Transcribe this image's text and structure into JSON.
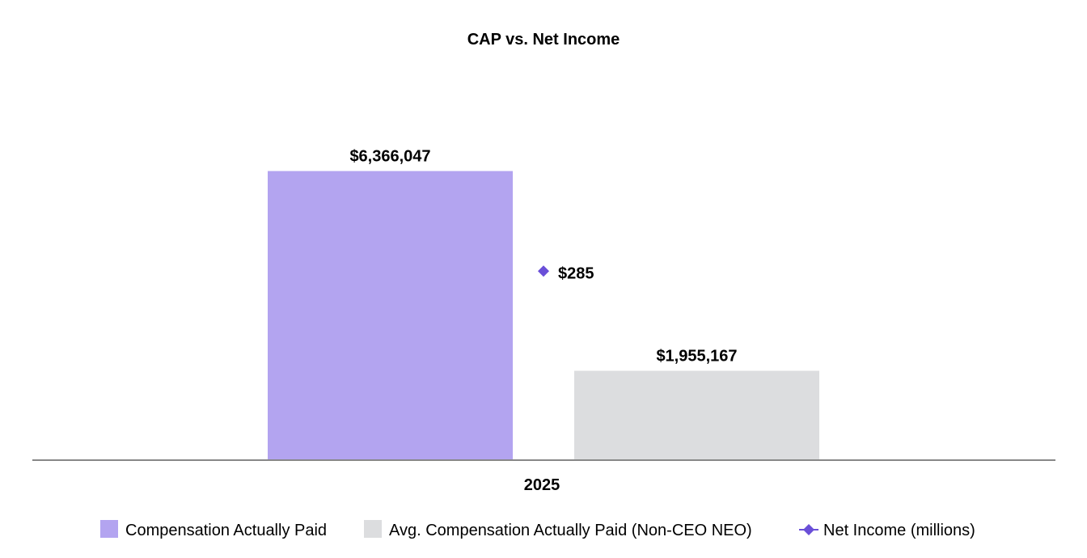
{
  "chart_data": {
    "type": "bar",
    "title": "CAP vs. Net Income",
    "categories": [
      "2025"
    ],
    "series": [
      {
        "name": "Compensation Actually Paid",
        "values": [
          6366047
        ],
        "labels": [
          "$6,366,047"
        ],
        "color": "#b3a4f0"
      },
      {
        "name": "Avg. Compensation Actually Paid (Non-CEO NEO)",
        "values": [
          1955167
        ],
        "labels": [
          "$1,955,167"
        ],
        "color": "#dcdddf"
      },
      {
        "name": "Net Income (millions)",
        "type": "scatter",
        "values": [
          285
        ],
        "labels": [
          "$285"
        ],
        "color": "#6a4fd8",
        "marker": "diamond"
      }
    ],
    "ylim": [
      0,
      7000000
    ],
    "net_income_ylim": [
      0,
      480
    ],
    "grid": false,
    "legend_position": "bottom"
  },
  "colors": {
    "axis": "#888888"
  }
}
